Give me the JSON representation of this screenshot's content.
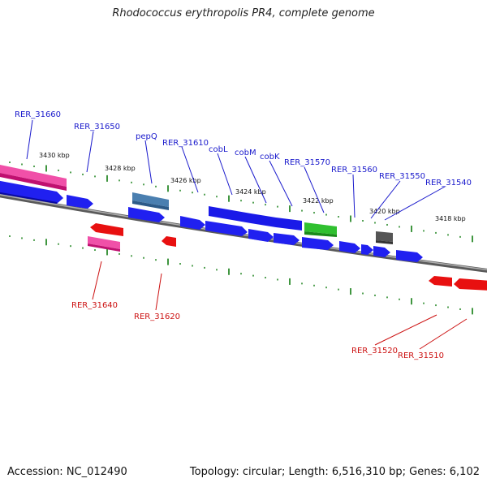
{
  "title": "Rhodococcus erythropolis PR4, complete genome",
  "footer": {
    "accession": "Accession: NC_012490",
    "summary": "Topology: circular; Length: 6,516,310 bp; Genes: 6,102"
  },
  "scale_labels": [
    "3430 kbp",
    "3428 kbp",
    "3426 kbp",
    "3424 kbp",
    "3422 kbp",
    "3420 kbp",
    "3418 kbp"
  ],
  "gene_labels_top": [
    "RER_31660",
    "RER_31650",
    "pepQ",
    "RER_31610",
    "cobL",
    "cobM",
    "cobK",
    "RER_31570",
    "RER_31560",
    "RER_31550",
    "RER_31540"
  ],
  "gene_labels_bottom": [
    "RER_31640",
    "RER_31620",
    "RER_31520",
    "RER_31510"
  ],
  "colors": {
    "blue": "#1010e0",
    "pink": "#e8288c",
    "steel": "#4a7fb0",
    "green": "#30c030",
    "gray": "#555555",
    "red": "#e01010",
    "tick": "#2a8a2a",
    "backbone": "#888888",
    "label_top": "#1a1acc",
    "label_bottom": "#cc1111"
  }
}
